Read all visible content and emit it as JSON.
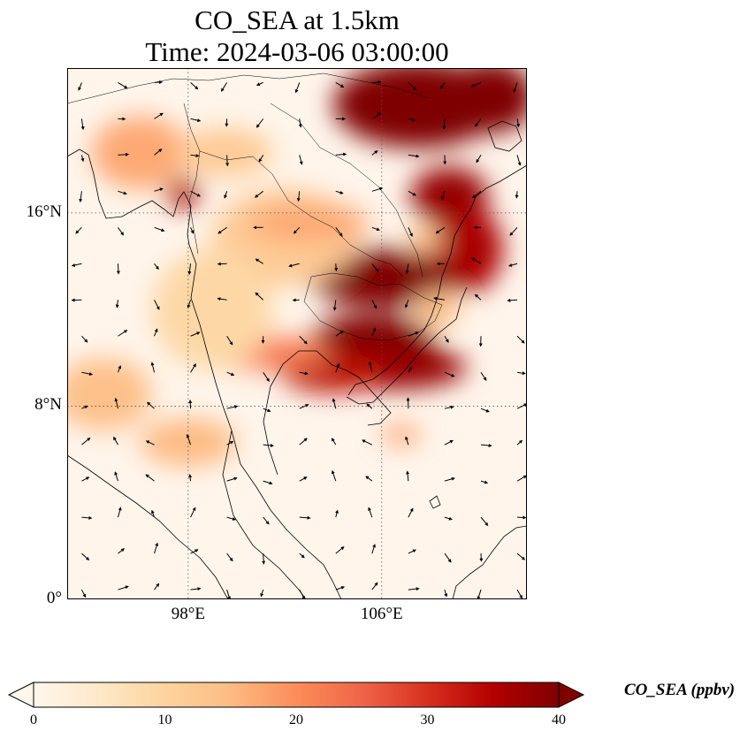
{
  "title": {
    "line1": "CO_SEA at 1.5km",
    "line2": "Time: 2024-03-06 03:00:00"
  },
  "map": {
    "variable": "CO_SEA",
    "extent": {
      "lon": [
        93,
        112
      ],
      "lat": [
        0,
        22
      ]
    },
    "gridlines": "dotted",
    "lat_ticks": [
      {
        "value": 16,
        "label": "16°N"
      },
      {
        "value": 8,
        "label": "8°N"
      },
      {
        "value": 0,
        "label": "0°"
      }
    ],
    "lon_ticks": [
      {
        "value": 98,
        "label": "98°E"
      },
      {
        "value": 106,
        "label": "106°E"
      }
    ],
    "concentration_blobs": [
      {
        "lon": 107.5,
        "lat": 20.5,
        "rlon": 3.5,
        "rlat": 1.8,
        "ppbv": 42
      },
      {
        "lon": 110.5,
        "lat": 20.8,
        "rlon": 1.8,
        "rlat": 1.5,
        "ppbv": 40
      },
      {
        "lon": 108.8,
        "lat": 16.7,
        "rlon": 1.6,
        "rlat": 1.2,
        "ppbv": 38
      },
      {
        "lon": 109.5,
        "lat": 14.5,
        "rlon": 1.5,
        "rlat": 1.8,
        "ppbv": 36
      },
      {
        "lon": 106.0,
        "lat": 13.3,
        "rlon": 3.0,
        "rlat": 1.2,
        "ppbv": 40
      },
      {
        "lon": 105.6,
        "lat": 10.6,
        "rlon": 2.6,
        "rlat": 1.2,
        "ppbv": 40
      },
      {
        "lon": 106.5,
        "lat": 9.6,
        "rlon": 3.0,
        "rlat": 0.9,
        "ppbv": 38
      },
      {
        "lon": 104.0,
        "lat": 9.4,
        "rlon": 2.2,
        "rlat": 0.8,
        "ppbv": 34
      },
      {
        "lon": 101.0,
        "lat": 10.2,
        "rlon": 3.0,
        "rlat": 0.7,
        "ppbv": 22
      },
      {
        "lon": 97.8,
        "lat": 16.8,
        "rlon": 0.7,
        "rlat": 0.6,
        "ppbv": 36
      },
      {
        "lon": 96.0,
        "lat": 18.5,
        "rlon": 2.0,
        "rlat": 1.5,
        "ppbv": 17
      },
      {
        "lon": 99.5,
        "lat": 18.5,
        "rlon": 2.0,
        "rlat": 1.0,
        "ppbv": 12
      },
      {
        "lon": 102.0,
        "lat": 15.0,
        "rlon": 3.0,
        "rlat": 2.0,
        "ppbv": 12
      },
      {
        "lon": 103.0,
        "lat": 15.6,
        "rlon": 2.5,
        "rlat": 0.8,
        "ppbv": 17
      },
      {
        "lon": 94.5,
        "lat": 8.5,
        "rlon": 2.0,
        "rlat": 1.5,
        "ppbv": 14
      },
      {
        "lon": 98.0,
        "lat": 6.5,
        "rlon": 2.0,
        "rlat": 1.0,
        "ppbv": 15
      },
      {
        "lon": 99.0,
        "lat": 12.0,
        "rlon": 2.5,
        "rlat": 2.5,
        "ppbv": 9
      },
      {
        "lon": 106.8,
        "lat": 6.8,
        "rlon": 0.8,
        "rlat": 0.4,
        "ppbv": 18
      }
    ],
    "bright_holes": [
      {
        "lon": 108.3,
        "lat": 12.0,
        "rlon": 0.9,
        "rlat": 0.8
      },
      {
        "lon": 107.8,
        "lat": 14.9,
        "rlon": 0.7,
        "rlat": 0.6
      }
    ],
    "wind_field": {
      "lon_step": 1.5,
      "lat_step": 1.5
    }
  },
  "colorbar": {
    "ticks": [
      "0",
      "10",
      "20",
      "30",
      "40"
    ],
    "min": 0,
    "max": 40,
    "extend": "both",
    "colormap": "OrRd",
    "label": "CO_SEA (ppbv)"
  }
}
